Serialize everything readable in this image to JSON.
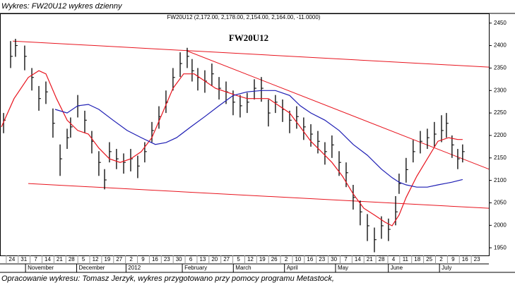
{
  "header": {
    "title": "Wykres: FW20U12 wykres dzienny"
  },
  "footer": {
    "text": "Opracowanie wykresu: Tomasz Jerzyk, wykres przygotowano przy pomocy programu Metastock,"
  },
  "chart_data": {
    "type": "ohlc",
    "title": "FW20U12",
    "subtitle": "FW20U12 (2,172.00, 2,178.00, 2,154.00, 2,164.00, -11.0000)",
    "xlim": [
      -1,
      40
    ],
    "ylim": [
      1933,
      2470
    ],
    "yticks": [
      1950,
      2000,
      2050,
      2100,
      2150,
      2200,
      2250,
      2300,
      2350,
      2400,
      2450
    ],
    "xticks": [
      {
        "value": 0,
        "label": "24"
      },
      {
        "value": 1,
        "label": "31"
      },
      {
        "value": 2,
        "label": "7"
      },
      {
        "value": 3,
        "label": "14"
      },
      {
        "value": 4,
        "label": "21"
      },
      {
        "value": 5,
        "label": "28"
      },
      {
        "value": 6,
        "label": "5"
      },
      {
        "value": 7,
        "label": "12"
      },
      {
        "value": 8,
        "label": "19"
      },
      {
        "value": 9,
        "label": "27"
      },
      {
        "value": 10,
        "label": "2"
      },
      {
        "value": 11,
        "label": "9"
      },
      {
        "value": 12,
        "label": "16"
      },
      {
        "value": 13,
        "label": "23"
      },
      {
        "value": 14,
        "label": "30"
      },
      {
        "value": 15,
        "label": "6"
      },
      {
        "value": 16,
        "label": "13"
      },
      {
        "value": 17,
        "label": "20"
      },
      {
        "value": 18,
        "label": "27"
      },
      {
        "value": 19,
        "label": "5"
      },
      {
        "value": 20,
        "label": "12"
      },
      {
        "value": 21,
        "label": "19"
      },
      {
        "value": 22,
        "label": "26"
      },
      {
        "value": 23,
        "label": "2"
      },
      {
        "value": 24,
        "label": "10"
      },
      {
        "value": 25,
        "label": "16"
      },
      {
        "value": 26,
        "label": "23"
      },
      {
        "value": 27,
        "label": "30"
      },
      {
        "value": 28,
        "label": "7"
      },
      {
        "value": 29,
        "label": "14"
      },
      {
        "value": 30,
        "label": "21"
      },
      {
        "value": 31,
        "label": "28"
      },
      {
        "value": 32,
        "label": "4"
      },
      {
        "value": 33,
        "label": "11"
      },
      {
        "value": 34,
        "label": "18"
      },
      {
        "value": 35,
        "label": "25"
      },
      {
        "value": 36,
        "label": "2"
      },
      {
        "value": 37,
        "label": "9"
      },
      {
        "value": 38,
        "label": "16"
      },
      {
        "value": 39,
        "label": "23"
      }
    ],
    "months": [
      {
        "value": 1.14,
        "label": "November"
      },
      {
        "value": 5.43,
        "label": "December"
      },
      {
        "value": 9.57,
        "label": "2012"
      },
      {
        "value": 14.29,
        "label": "February"
      },
      {
        "value": 18.57,
        "label": "March"
      },
      {
        "value": 22.86,
        "label": "April"
      },
      {
        "value": 27.14,
        "label": "May"
      },
      {
        "value": 31.57,
        "label": "June"
      },
      {
        "value": 35.86,
        "label": "July"
      }
    ],
    "bars": {
      "color": "#000000",
      "x": [
        -0.7,
        -0.11,
        0.3,
        1.07,
        1.67,
        2.26,
        2.85,
        3.44,
        4.04,
        4.63,
        4.92,
        5.52,
        6.11,
        6.7,
        7.29,
        7.77,
        8.18,
        8.77,
        9.37,
        9.96,
        10.55,
        11.14,
        11.74,
        12.33,
        12.92,
        13.51,
        14.11,
        14.7,
        15.11,
        15.59,
        16.18,
        16.77,
        17.37,
        17.96,
        18.55,
        19.14,
        19.73,
        20.33,
        20.92,
        21.51,
        22.1,
        22.7,
        23.29,
        23.88,
        24.47,
        25.07,
        25.66,
        26.25,
        26.84,
        27.44,
        28.03,
        28.62,
        29.21,
        29.81,
        30.4,
        30.99,
        31.58,
        32.18,
        32.47,
        33.06,
        33.65,
        34.25,
        34.84,
        35.43,
        36.03,
        36.44,
        36.91,
        37.39,
        37.8
      ],
      "high": [
        2250,
        2410,
        2415,
        2400,
        2350,
        2310,
        2320,
        2260,
        2180,
        2215,
        2240,
        2290,
        2255,
        2210,
        2165,
        2125,
        2185,
        2170,
        2160,
        2170,
        2155,
        2185,
        2230,
        2265,
        2300,
        2350,
        2385,
        2395,
        2370,
        2350,
        2345,
        2360,
        2330,
        2320,
        2300,
        2290,
        2295,
        2325,
        2330,
        2280,
        2290,
        2280,
        2255,
        2265,
        2240,
        2225,
        2210,
        2185,
        2200,
        2165,
        2140,
        2090,
        2055,
        2025,
        1995,
        2020,
        2015,
        2065,
        2115,
        2150,
        2190,
        2210,
        2215,
        2230,
        2245,
        2250,
        2200,
        2170,
        2180
      ],
      "low": [
        2205,
        2350,
        2375,
        2345,
        2300,
        2255,
        2270,
        2195,
        2110,
        2170,
        2195,
        2240,
        2205,
        2160,
        2110,
        2080,
        2140,
        2125,
        2115,
        2120,
        2105,
        2140,
        2185,
        2215,
        2250,
        2300,
        2330,
        2350,
        2320,
        2300,
        2295,
        2310,
        2280,
        2270,
        2245,
        2240,
        2250,
        2280,
        2275,
        2220,
        2250,
        2230,
        2205,
        2215,
        2190,
        2175,
        2160,
        2135,
        2150,
        2110,
        2085,
        2035,
        2000,
        1965,
        1940,
        1970,
        1965,
        2000,
        2070,
        2095,
        2140,
        2160,
        2170,
        2175,
        2185,
        2195,
        2150,
        2125,
        2140
      ],
      "close": [
        2234,
        2376,
        2400,
        2376,
        2329,
        2282,
        2297,
        2227,
        2148,
        2195,
        2219,
        2266,
        2234,
        2187,
        2140,
        2101,
        2164,
        2148,
        2140,
        2148,
        2132,
        2164,
        2211,
        2242,
        2274,
        2329,
        2360,
        2376,
        2344,
        2329,
        2321,
        2337,
        2305,
        2297,
        2274,
        2266,
        2274,
        2305,
        2305,
        2250,
        2274,
        2258,
        2234,
        2242,
        2219,
        2203,
        2187,
        2164,
        2179,
        2140,
        2117,
        2062,
        2030,
        1999,
        1968,
        1999,
        1991,
        2030,
        2093,
        2124,
        2164,
        2187,
        2195,
        2203,
        2211,
        2227,
        2179,
        2148,
        2164
      ]
    },
    "lines": [
      {
        "color": "#e8141e",
        "x": [
          -0.88,
          0.18,
          1.37,
          2.26,
          2.85,
          3.74,
          4.63,
          5.52,
          6.41,
          7.29,
          8.18,
          9.07,
          9.96,
          10.85,
          11.74,
          12.63,
          13.51,
          14.4,
          15.29,
          16.18,
          17.07,
          17.96,
          18.85,
          19.73,
          20.62,
          21.51,
          22.4,
          23.29,
          24.18,
          25.07,
          25.95,
          26.84,
          27.73,
          28.62,
          29.51,
          30.4,
          31.29,
          31.88,
          32.47,
          33.06,
          33.95,
          34.84,
          35.73,
          36.62,
          37.39,
          37.8
        ],
        "values": [
          2219,
          2282,
          2329,
          2344,
          2337,
          2282,
          2234,
          2211,
          2203,
          2172,
          2148,
          2140,
          2148,
          2164,
          2195,
          2250,
          2305,
          2337,
          2337,
          2321,
          2305,
          2297,
          2289,
          2282,
          2282,
          2282,
          2266,
          2250,
          2219,
          2187,
          2164,
          2140,
          2109,
          2070,
          2038,
          2023,
          2007,
          1999,
          2023,
          2062,
          2109,
          2148,
          2187,
          2195,
          2191,
          2191
        ]
      },
      {
        "color": "#1e1eb4",
        "x": [
          3.62,
          4.63,
          5.52,
          6.41,
          7.29,
          8.48,
          9.66,
          10.85,
          12.03,
          12.92,
          13.81,
          15.0,
          16.18,
          17.37,
          18.55,
          19.73,
          20.92,
          22.1,
          23.29,
          24.18,
          25.07,
          26.25,
          27.44,
          28.62,
          29.81,
          30.99,
          31.88,
          32.47,
          33.06,
          33.95,
          34.84,
          35.73,
          36.91,
          37.8
        ],
        "values": [
          2258,
          2250,
          2266,
          2269,
          2258,
          2234,
          2211,
          2195,
          2180,
          2184,
          2195,
          2219,
          2242,
          2266,
          2289,
          2297,
          2300,
          2300,
          2289,
          2266,
          2250,
          2234,
          2211,
          2180,
          2156,
          2125,
          2106,
          2096,
          2090,
          2085,
          2085,
          2090,
          2096,
          2102
        ]
      }
    ],
    "trendlines": [
      {
        "color": "#e8141e",
        "x": [
          0.07,
          40
        ],
        "values": [
          2410,
          2352
        ]
      },
      {
        "color": "#e8141e",
        "x": [
          14.7,
          40
        ],
        "values": [
          2388,
          2125
        ]
      },
      {
        "color": "#e8141e",
        "x": [
          1.37,
          40
        ],
        "values": [
          2093,
          2038
        ]
      }
    ]
  }
}
